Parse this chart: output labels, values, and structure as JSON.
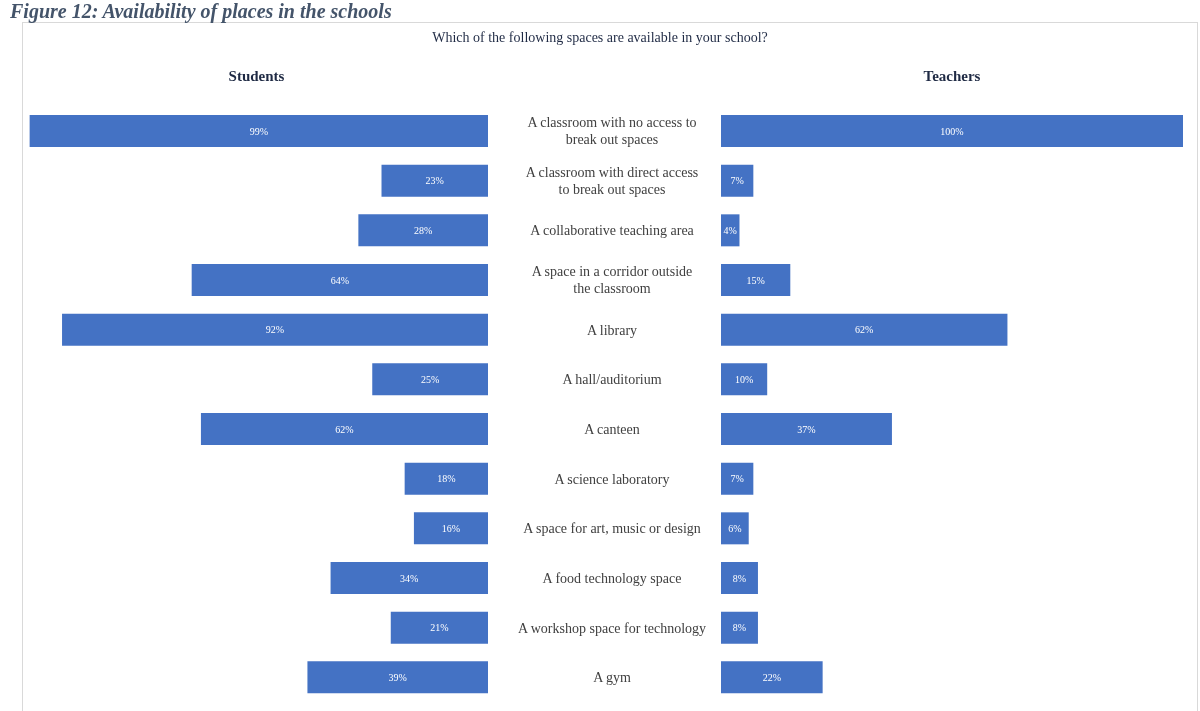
{
  "chart_data": [
    {
      "type": "bar",
      "orientation": "horizontal",
      "title": "Figure 12: Availability of places in the schools",
      "subtitle": "Which of the following spaces are available in your school?",
      "categories": [
        "A classroom with no access to break out spaces",
        "A classroom with direct access to break out spaces",
        "A collaborative teaching area",
        "A space in a corridor outside the classroom",
        "A library",
        "A hall/auditorium",
        "A canteen",
        "A science laboratory",
        "A space for art, music or design",
        "A food technology space",
        "A workshop space for technology",
        "A gym"
      ],
      "series": [
        {
          "name": "Students",
          "color": "#4472c4",
          "values": [
            99,
            23,
            28,
            64,
            92,
            25,
            62,
            18,
            16,
            34,
            21,
            39
          ],
          "value_labels": [
            "99%",
            "23%",
            "28%",
            "64%",
            "92%",
            "25%",
            "62%",
            "18%",
            "16%",
            "34%",
            "21%",
            "39%"
          ]
        }
      ]
    },
    {
      "type": "bar",
      "orientation": "horizontal",
      "categories": [
        null,
        null,
        null,
        null,
        null,
        null,
        null,
        null,
        null,
        null,
        null,
        null
      ],
      "series": [
        {
          "name": "Teachers",
          "color": "#4472c4",
          "values": [
            100,
            7,
            4,
            15,
            62,
            10,
            37,
            7,
            6,
            8,
            8,
            22
          ],
          "value_labels": [
            "100%",
            "7%",
            "4%",
            "15%",
            "62%",
            "10%",
            "37%",
            "7%",
            "6%",
            "8%",
            "8%",
            "22%"
          ]
        }
      ]
    }
  ]
}
